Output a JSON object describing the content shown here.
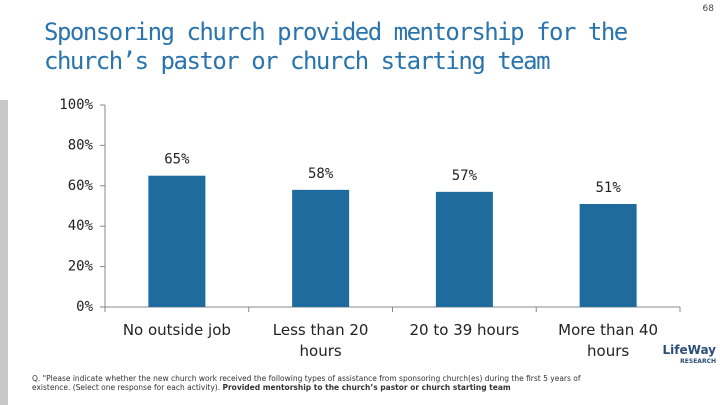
{
  "page_number": "68",
  "chart_data": {
    "type": "bar",
    "title": "Sponsoring church provided mentorship for the church’s pastor or church starting team",
    "categories": [
      "No outside job",
      "Less than 20 hours",
      "20 to 39 hours",
      "More than 40 hours"
    ],
    "values": [
      65,
      58,
      57,
      51
    ],
    "value_labels": [
      "65%",
      "58%",
      "57%",
      "51%"
    ],
    "color": "#1f6b9e",
    "ylim": [
      0,
      100
    ],
    "yticks": [
      {
        "value": 0,
        "label": "0%"
      },
      {
        "value": 20,
        "label": "20%"
      },
      {
        "value": 40,
        "label": "40%"
      },
      {
        "value": 60,
        "label": "60%"
      },
      {
        "value": 80,
        "label": "80%"
      },
      {
        "value": 100,
        "label": "100%"
      }
    ],
    "grid": false,
    "footnote": "Q. \"Please indicate whether the new church work received the following types of assistance from sponsoring church(es) during the first 5 years of existence. (Select one response for each activity).",
    "footnote_bold": "Provided mentorship to the church’s pastor or church starting team"
  },
  "logo": {
    "name": "LifeWay",
    "sub": "RESEARCH"
  }
}
